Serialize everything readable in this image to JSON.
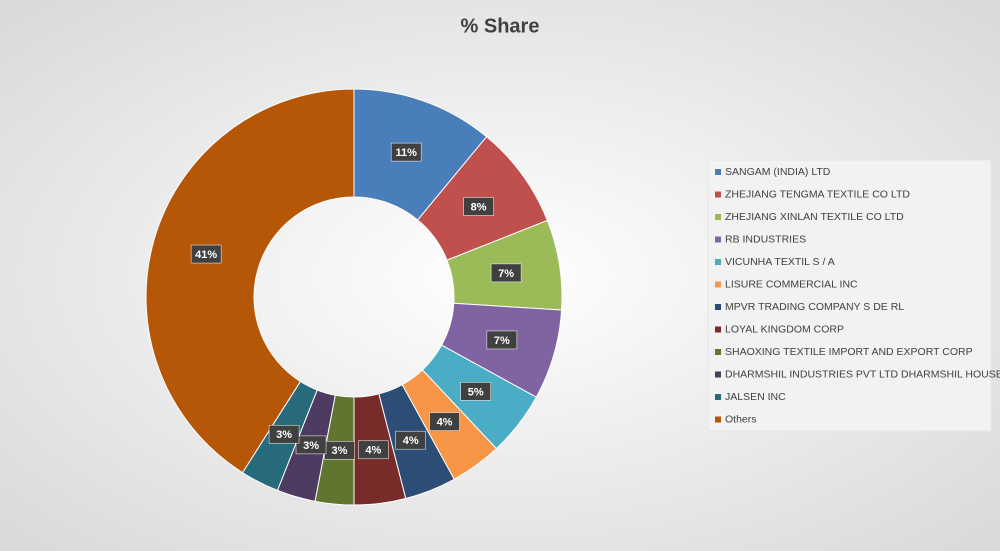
{
  "chart_data": {
    "type": "donut",
    "title": "% Share",
    "categories": [
      "SANGAM (INDIA) LTD",
      "ZHEJIANG TENGMA TEXTILE CO LTD",
      "ZHEJIANG XINLAN TEXTILE CO LTD",
      "RB INDUSTRIES",
      "VICUNHA TEXTIL S / A",
      "LISURE COMMERCIAL INC",
      "MPVR TRADING COMPANY S DE RL",
      "LOYAL KINGDOM CORP",
      "SHAOXING TEXTILE IMPORT AND EXPORT CORP",
      "DHARMSHIL INDUSTRIES PVT LTD DHARMSHIL HOUSE",
      "JALSEN INC",
      "Others"
    ],
    "values": [
      11,
      8,
      7,
      7,
      5,
      4,
      4,
      4,
      3,
      3,
      3,
      41
    ],
    "value_labels": [
      "11%",
      "8%",
      "7%",
      "7%",
      "5%",
      "4%",
      "4%",
      "4%",
      "3%",
      "3%",
      "3%",
      "41%"
    ],
    "colors": [
      "#4a7ebb",
      "#c0504d",
      "#9bbb59",
      "#8064a2",
      "#4bacc6",
      "#f79646",
      "#2c4d75",
      "#772c2a",
      "#5f7530",
      "#4d3b62",
      "#276a7c",
      "#b65708"
    ],
    "legend": "right"
  }
}
